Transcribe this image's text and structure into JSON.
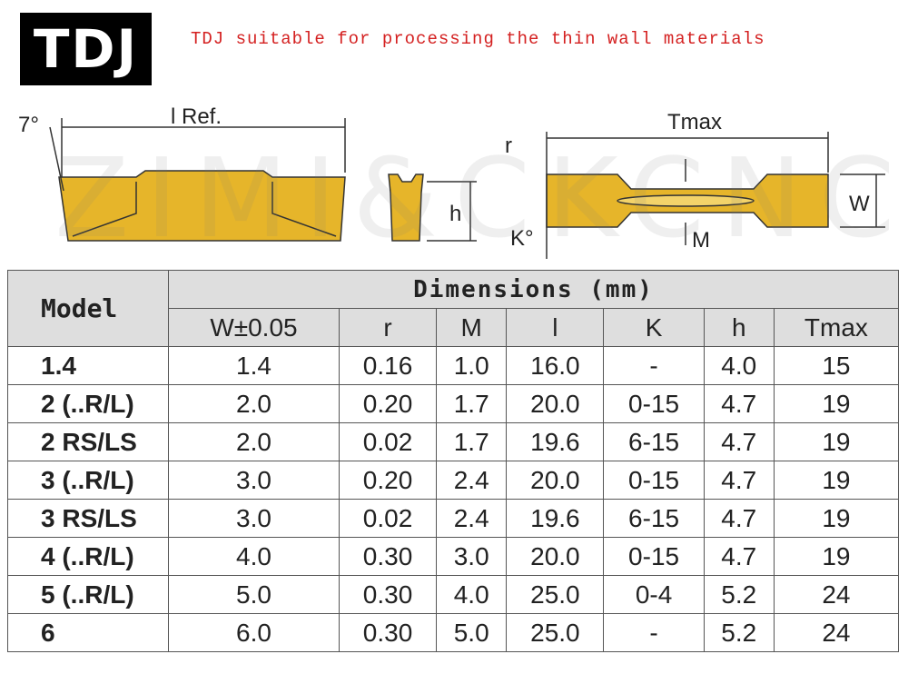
{
  "header": {
    "logo": "TDJ",
    "subtitle": "TDJ suitable for processing the thin wall materials"
  },
  "watermark": "ZIMI&CKCNC",
  "diagram": {
    "angle": "7°",
    "length": "l Ref.",
    "height": "h",
    "radius": "r",
    "total_length": "Tmax",
    "width": "W",
    "k_angle": "K°",
    "m_label": "M"
  },
  "table": {
    "model_header": "Model",
    "group_header": "Dimensions (mm)",
    "columns": [
      "W±0.05",
      "r",
      "M",
      "l",
      "K",
      "h",
      "Tmax"
    ],
    "rows": [
      [
        "1.4",
        "1.4",
        "0.16",
        "1.0",
        "16.0",
        "-",
        "4.0",
        "15"
      ],
      [
        "2 (..R/L)",
        "2.0",
        "0.20",
        "1.7",
        "20.0",
        "0-15",
        "4.7",
        "19"
      ],
      [
        "2 RS/LS",
        "2.0",
        "0.02",
        "1.7",
        "19.6",
        "6-15",
        "4.7",
        "19"
      ],
      [
        "3 (..R/L)",
        "3.0",
        "0.20",
        "2.4",
        "20.0",
        "0-15",
        "4.7",
        "19"
      ],
      [
        "3 RS/LS",
        "3.0",
        "0.02",
        "2.4",
        "19.6",
        "6-15",
        "4.7",
        "19"
      ],
      [
        "4 (..R/L)",
        "4.0",
        "0.30",
        "3.0",
        "20.0",
        "0-15",
        "4.7",
        "19"
      ],
      [
        "5 (..R/L)",
        "5.0",
        "0.30",
        "4.0",
        "25.0",
        "0-4",
        "5.2",
        "24"
      ],
      [
        "6",
        "6.0",
        "0.30",
        "5.0",
        "25.0",
        "-",
        "5.2",
        "24"
      ]
    ]
  }
}
